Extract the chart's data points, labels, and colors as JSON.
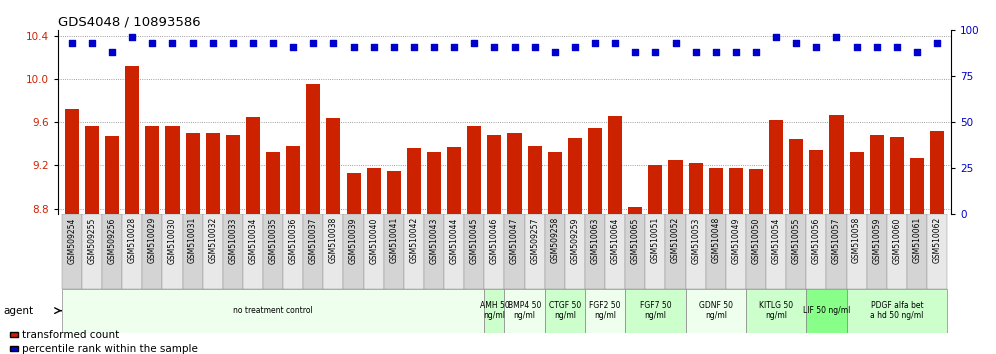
{
  "title": "GDS4048 / 10893586",
  "categories": [
    "GSM509254",
    "GSM509255",
    "GSM509256",
    "GSM510028",
    "GSM510029",
    "GSM510030",
    "GSM510031",
    "GSM510032",
    "GSM510033",
    "GSM510034",
    "GSM510035",
    "GSM510036",
    "GSM510037",
    "GSM510038",
    "GSM510039",
    "GSM510040",
    "GSM510041",
    "GSM510042",
    "GSM510043",
    "GSM510044",
    "GSM510045",
    "GSM510046",
    "GSM510047",
    "GSM509257",
    "GSM509258",
    "GSM509259",
    "GSM510063",
    "GSM510064",
    "GSM510065",
    "GSM510051",
    "GSM510052",
    "GSM510053",
    "GSM510048",
    "GSM510049",
    "GSM510050",
    "GSM510054",
    "GSM510055",
    "GSM510056",
    "GSM510057",
    "GSM510058",
    "GSM510059",
    "GSM510060",
    "GSM510061",
    "GSM510062"
  ],
  "bar_values": [
    9.72,
    9.56,
    9.47,
    10.12,
    9.56,
    9.56,
    9.5,
    9.5,
    9.48,
    9.65,
    9.32,
    9.38,
    9.95,
    9.64,
    9.13,
    9.18,
    9.15,
    9.36,
    9.32,
    9.37,
    9.56,
    9.48,
    9.5,
    9.38,
    9.32,
    9.45,
    9.55,
    9.66,
    8.82,
    9.2,
    9.25,
    9.22,
    9.18,
    9.18,
    9.17,
    9.62,
    9.44,
    9.34,
    9.67,
    9.32,
    9.48,
    9.46,
    9.27,
    9.52
  ],
  "percentile_values": [
    93,
    93,
    88,
    96,
    93,
    93,
    93,
    93,
    93,
    93,
    93,
    91,
    93,
    93,
    91,
    91,
    91,
    91,
    91,
    91,
    93,
    91,
    91,
    91,
    88,
    91,
    93,
    93,
    88,
    88,
    93,
    88,
    88,
    88,
    88,
    96,
    93,
    91,
    96,
    91,
    91,
    91,
    88,
    93
  ],
  "ylim_left": [
    8.75,
    10.45
  ],
  "ylim_right": [
    0,
    100
  ],
  "yticks_left": [
    8.8,
    9.2,
    9.6,
    10.0,
    10.4
  ],
  "yticks_right": [
    0,
    25,
    50,
    75,
    100
  ],
  "bar_color": "#cc2200",
  "dot_color": "#0000cc",
  "group_defs": [
    {
      "label": "no treatment control",
      "indices": [
        0,
        1,
        2,
        3,
        4,
        5,
        6,
        7,
        8,
        9,
        10,
        11,
        12,
        13,
        14,
        15,
        16,
        17,
        18,
        19,
        20
      ],
      "color": "#eeffee"
    },
    {
      "label": "AMH 50\nng/ml",
      "indices": [
        21
      ],
      "color": "#ccffcc"
    },
    {
      "label": "BMP4 50\nng/ml",
      "indices": [
        22,
        23
      ],
      "color": "#eeffee"
    },
    {
      "label": "CTGF 50\nng/ml",
      "indices": [
        24,
        25
      ],
      "color": "#ccffcc"
    },
    {
      "label": "FGF2 50\nng/ml",
      "indices": [
        26,
        27
      ],
      "color": "#eeffee"
    },
    {
      "label": "FGF7 50\nng/ml",
      "indices": [
        28,
        29,
        30
      ],
      "color": "#ccffcc"
    },
    {
      "label": "GDNF 50\nng/ml",
      "indices": [
        31,
        32,
        33
      ],
      "color": "#eeffee"
    },
    {
      "label": "KITLG 50\nng/ml",
      "indices": [
        34,
        35,
        36
      ],
      "color": "#ccffcc"
    },
    {
      "label": "LIF 50 ng/ml",
      "indices": [
        37,
        38
      ],
      "color": "#88ff88"
    },
    {
      "label": "PDGF alfa bet\na hd 50 ng/ml",
      "indices": [
        39,
        40,
        41,
        42,
        43
      ],
      "color": "#ccffcc"
    }
  ],
  "background_color": "#ffffff"
}
